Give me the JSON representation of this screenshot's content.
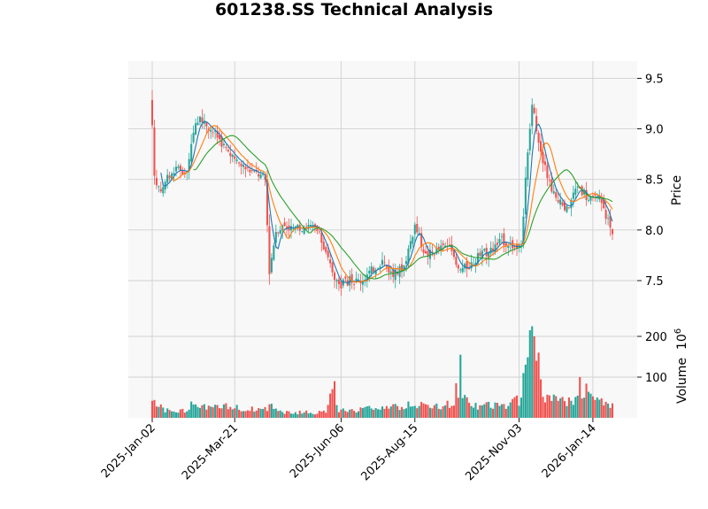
{
  "chart_data": {
    "type": "candlestick",
    "title": "601238.SS Technical Analysis",
    "price_panel": {
      "ylabel": "Price",
      "yticks": [
        7.5,
        8.0,
        8.5,
        9.0,
        9.5
      ],
      "ylim": [
        7.15,
        9.67
      ],
      "grid": true,
      "moving_averages": [
        {
          "color": "#1f77b4"
        },
        {
          "color": "#ff7f0e"
        },
        {
          "color": "#2ca02c"
        }
      ]
    },
    "volume_panel": {
      "ylabel": "Volume",
      "scale_label": "10^6",
      "scale_base": "10",
      "scale_exp": "6",
      "yticks": [
        100,
        200
      ],
      "ylim": [
        0,
        250
      ],
      "grid": true
    },
    "xticks": [
      "2025-Jan-02",
      "2025-Mar-21",
      "2025-Jun-06",
      "2025-Aug-15",
      "2025-Nov-03",
      "2026-Jan-14"
    ],
    "up_color": "#26a69a",
    "down_color": "#ef5350",
    "close_anchors": [
      [
        0,
        9.0
      ],
      [
        1,
        8.5
      ],
      [
        4,
        8.4
      ],
      [
        10,
        8.6
      ],
      [
        16,
        8.55
      ],
      [
        20,
        9.1
      ],
      [
        25,
        9.05
      ],
      [
        31,
        8.9
      ],
      [
        37,
        8.7
      ],
      [
        44,
        8.6
      ],
      [
        49,
        8.55
      ],
      [
        52,
        8.5
      ],
      [
        54,
        7.6
      ],
      [
        57,
        8.0
      ],
      [
        61,
        8.05
      ],
      [
        66,
        8.0
      ],
      [
        71,
        8.05
      ],
      [
        76,
        8.0
      ],
      [
        81,
        7.7
      ],
      [
        86,
        7.45
      ],
      [
        91,
        7.5
      ],
      [
        96,
        7.5
      ],
      [
        101,
        7.6
      ],
      [
        106,
        7.7
      ],
      [
        111,
        7.55
      ],
      [
        116,
        7.65
      ],
      [
        121,
        8.05
      ],
      [
        126,
        7.75
      ],
      [
        131,
        7.8
      ],
      [
        136,
        7.85
      ],
      [
        141,
        7.6
      ],
      [
        146,
        7.65
      ],
      [
        151,
        7.75
      ],
      [
        156,
        7.8
      ],
      [
        161,
        7.9
      ],
      [
        166,
        7.85
      ],
      [
        170,
        7.8
      ],
      [
        172,
        8.5
      ],
      [
        175,
        9.25
      ],
      [
        178,
        8.9
      ],
      [
        181,
        8.6
      ],
      [
        186,
        8.3
      ],
      [
        191,
        8.2
      ],
      [
        196,
        8.45
      ],
      [
        201,
        8.3
      ],
      [
        206,
        8.3
      ],
      [
        210,
        8.1
      ],
      [
        212,
        7.95
      ]
    ],
    "volume_anchors": [
      [
        0,
        45
      ],
      [
        5,
        22
      ],
      [
        10,
        12
      ],
      [
        15,
        18
      ],
      [
        20,
        38
      ],
      [
        25,
        30
      ],
      [
        30,
        25
      ],
      [
        35,
        28
      ],
      [
        40,
        25
      ],
      [
        45,
        22
      ],
      [
        50,
        20
      ],
      [
        55,
        28
      ],
      [
        60,
        15
      ],
      [
        65,
        12
      ],
      [
        70,
        15
      ],
      [
        75,
        12
      ],
      [
        80,
        14
      ],
      [
        83,
        80
      ],
      [
        86,
        20
      ],
      [
        90,
        15
      ],
      [
        95,
        18
      ],
      [
        100,
        25
      ],
      [
        105,
        30
      ],
      [
        110,
        25
      ],
      [
        115,
        28
      ],
      [
        120,
        35
      ],
      [
        125,
        30
      ],
      [
        130,
        28
      ],
      [
        135,
        32
      ],
      [
        140,
        38
      ],
      [
        143,
        60
      ],
      [
        146,
        30
      ],
      [
        150,
        28
      ],
      [
        155,
        32
      ],
      [
        160,
        30
      ],
      [
        165,
        35
      ],
      [
        170,
        45
      ],
      [
        173,
        150
      ],
      [
        175,
        180
      ],
      [
        177,
        110
      ],
      [
        180,
        55
      ],
      [
        185,
        45
      ],
      [
        190,
        42
      ],
      [
        195,
        40
      ],
      [
        199,
        70
      ],
      [
        203,
        45
      ],
      [
        208,
        40
      ],
      [
        212,
        30
      ]
    ],
    "volume_spikes": [
      [
        84,
        90
      ],
      [
        140,
        85
      ],
      [
        142,
        155
      ],
      [
        171,
        110
      ],
      [
        174,
        215
      ],
      [
        176,
        200
      ],
      [
        178,
        160
      ],
      [
        197,
        100
      ]
    ]
  }
}
